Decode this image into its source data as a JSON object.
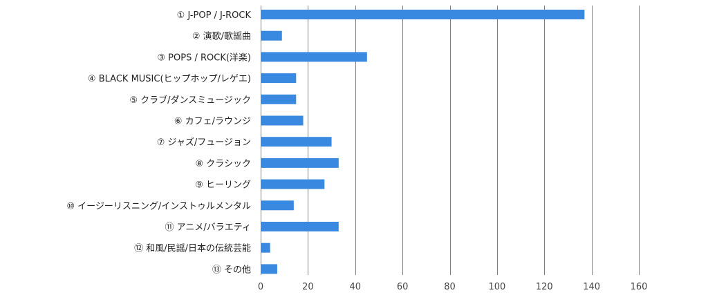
{
  "chart_data": {
    "type": "bar",
    "orientation": "horizontal",
    "categories": [
      "① J-POP / J-ROCK",
      "② 演歌/歌謡曲",
      "③ POPS / ROCK(洋楽)",
      "④ BLACK MUSIC(ヒップホップ/レゲエ)",
      "⑤ クラブ/ダンスミュージック",
      "⑥ カフェ/ラウンジ",
      "⑦ ジャズ/フュージョン",
      "⑧ クラシック",
      "⑨ ヒーリング",
      "⑩ イージーリスニング/インストゥルメンタル",
      "⑪ アニメ/バラエティ",
      "⑫ 和風/民謡/日本の伝統芸能",
      "⑬ その他"
    ],
    "values": [
      137,
      9,
      45,
      15,
      15,
      18,
      30,
      33,
      27,
      14,
      33,
      4,
      7
    ],
    "xlim": [
      0,
      160
    ],
    "xticks": [
      0,
      20,
      40,
      60,
      80,
      100,
      120,
      140,
      160
    ],
    "grid": true,
    "bar_color": "#3a89e0",
    "title": "",
    "xlabel": "",
    "ylabel": ""
  }
}
